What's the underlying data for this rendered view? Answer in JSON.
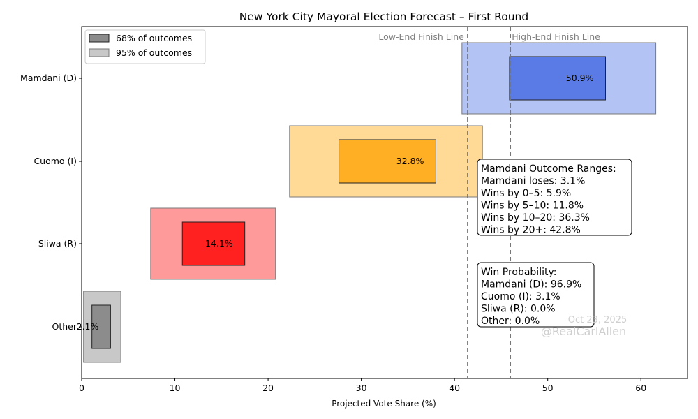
{
  "chart_data": {
    "type": "bar",
    "title": "New York City Mayoral Election Forecast – First Round",
    "xlabel": "Projected Vote Share (%)",
    "ylabel": "",
    "xlim": [
      0,
      65
    ],
    "xticks": [
      0,
      10,
      20,
      30,
      40,
      50,
      60
    ],
    "grid": false,
    "legend": {
      "placement": "top-left",
      "entries": [
        {
          "label": "68% of outcomes",
          "color": "#8c8c8c"
        },
        {
          "label": "95% of outcomes",
          "color": "#c8c8c8"
        }
      ]
    },
    "categories": [
      "Mamdani (D)",
      "Cuomo (I)",
      "Sliwa (R)",
      "Other"
    ],
    "candidates": [
      {
        "name": "Mamdani (D)",
        "median_label": "50.9%",
        "range68": [
          45.9,
          56.2
        ],
        "range95": [
          40.8,
          61.6
        ],
        "color68": "#5a7be6",
        "color95": "#b3c3f3"
      },
      {
        "name": "Cuomo (I)",
        "median_label": "32.8%",
        "range68": [
          27.6,
          38.0
        ],
        "range95": [
          22.3,
          43.0
        ],
        "color68": "#ffaf24",
        "color95": "#ffda96"
      },
      {
        "name": "Sliwa (R)",
        "median_label": "14.1%",
        "range68": [
          10.8,
          17.5
        ],
        "range95": [
          7.4,
          20.8
        ],
        "color68": "#ff2020",
        "color95": "#ff9a9a"
      },
      {
        "name": "Other",
        "median_label": "2.1%",
        "range68": [
          1.1,
          3.1
        ],
        "range95": [
          0.2,
          4.2
        ],
        "color68": "#8c8c8c",
        "color95": "#c8c8c8"
      }
    ],
    "finish_lines": [
      {
        "label": "Low-End Finish Line",
        "x": 41.4
      },
      {
        "label": "High-End Finish Line",
        "x": 46.0
      }
    ],
    "annotations": {
      "outcome_ranges": [
        "Mamdani Outcome Ranges:",
        "Mamdani loses: 3.1%",
        "Wins by 0–5: 5.9%",
        "Wins by 5–10: 11.8%",
        "Wins by 10–20: 36.3%",
        "Wins by 20+: 42.8%"
      ],
      "win_probability": [
        "Win Probability:",
        "Mamdani (D): 96.9%",
        "Cuomo (I): 3.1%",
        "Sliwa (R): 0.0%",
        "Other: 0.0%"
      ],
      "watermark_date": "Oct 23, 2025",
      "watermark_handle": "@RealCarlAllen"
    }
  }
}
